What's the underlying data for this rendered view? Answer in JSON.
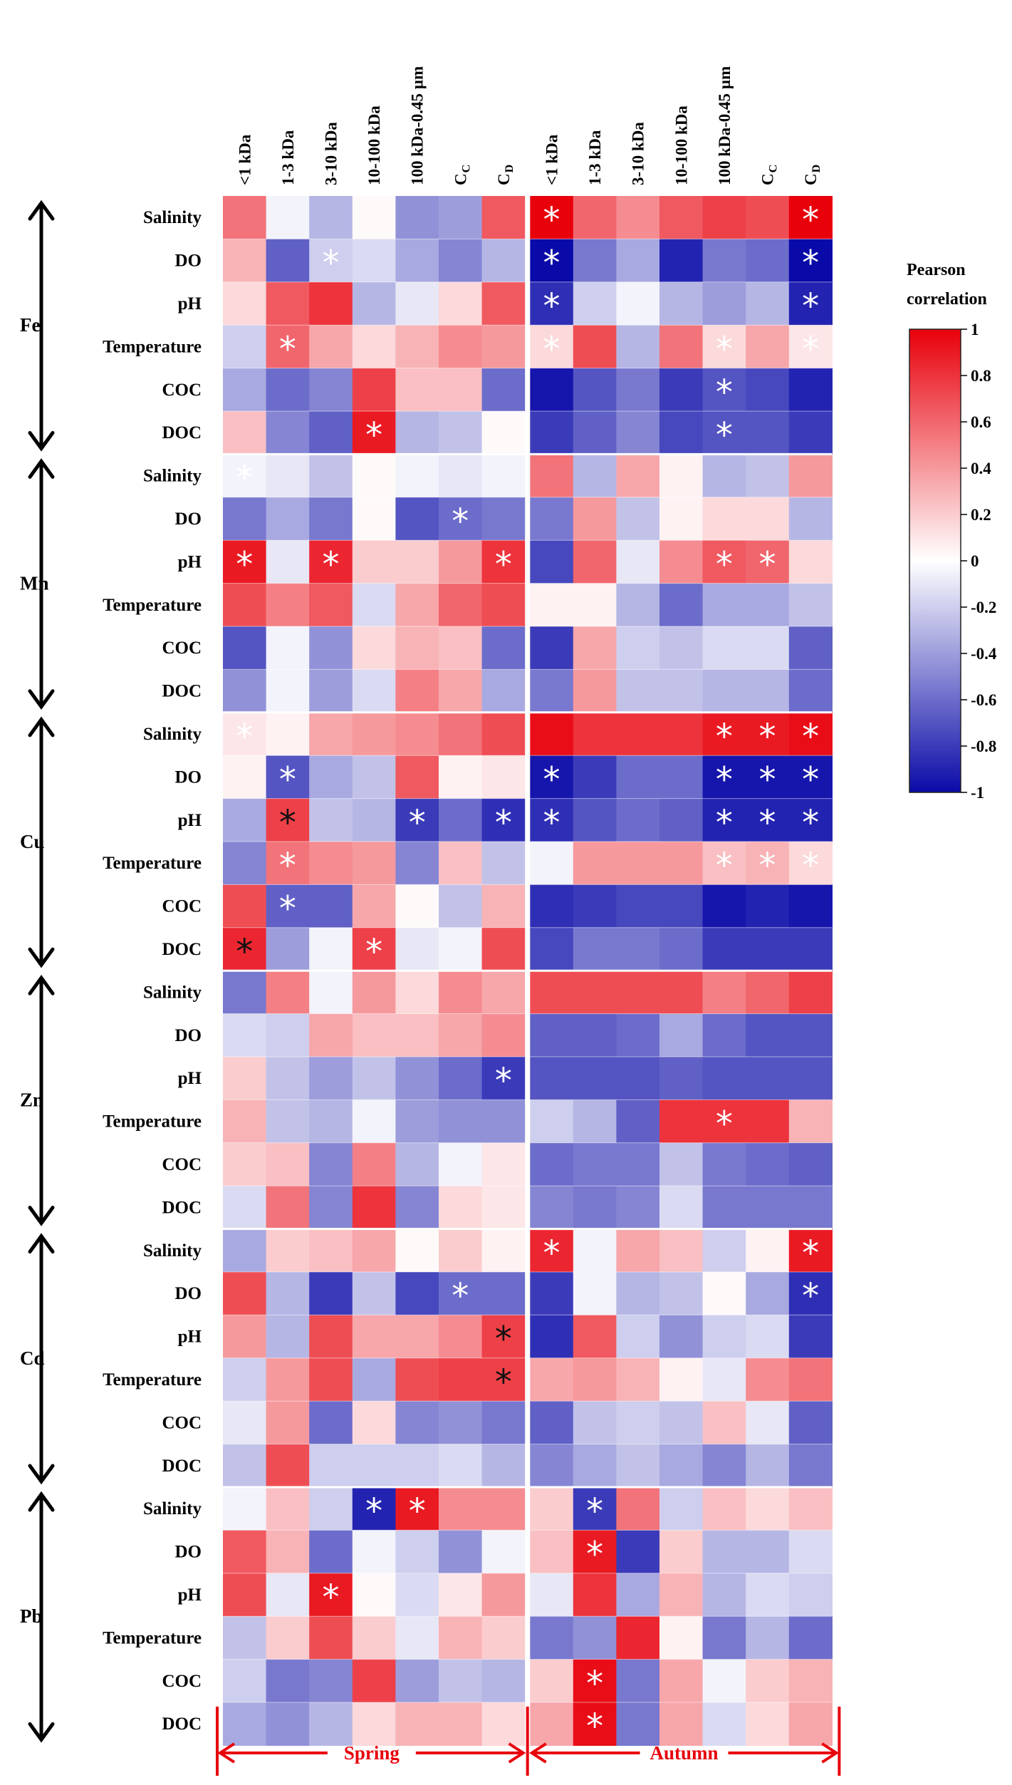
{
  "chart_data": {
    "type": "heatmap",
    "title": "",
    "legend_title": [
      "Pearson",
      "correlation"
    ],
    "legend_ticks": [
      "1",
      "0.8",
      "0.6",
      "0.4",
      "0.2",
      "0",
      "-0.2",
      "-0.4",
      "-0.6",
      "-0.8",
      "-1"
    ],
    "value_range": [
      -1,
      1
    ],
    "colors": {
      "positive": "#e8000b",
      "neutral": "#ffffff",
      "negative": "#0a0aa8",
      "axis": "#000000",
      "season": "#e8000b"
    },
    "columns": [
      {
        "label": "<1 kDa"
      },
      {
        "label": "1-3 kDa"
      },
      {
        "label": "3-10 kDa"
      },
      {
        "label": "10-100 kDa"
      },
      {
        "label": "100 kDa-0.45 µm"
      },
      {
        "label": "C",
        "sub": "C"
      },
      {
        "label": "C",
        "sub": "D"
      },
      {
        "label": "<1 kDa"
      },
      {
        "label": "1-3 kDa"
      },
      {
        "label": "3-10 kDa"
      },
      {
        "label": "10-100 kDa"
      },
      {
        "label": "100 kDa-0.45 µm"
      },
      {
        "label": "C",
        "sub": "C"
      },
      {
        "label": "C",
        "sub": "D"
      }
    ],
    "seasons": [
      "Spring",
      "Autumn"
    ],
    "variables": [
      "Salinity",
      "DO",
      "pH",
      "Temperature",
      "COC",
      "DOC"
    ],
    "groups": [
      {
        "metal": "Fe",
        "values": [
          [
            0.55,
            -0.05,
            -0.3,
            0.02,
            -0.45,
            -0.4,
            0.65,
            1.0,
            0.6,
            0.45,
            0.65,
            0.75,
            0.7,
            1.0
          ],
          [
            0.3,
            -0.65,
            -0.2,
            -0.15,
            -0.35,
            -0.5,
            -0.3,
            -1.0,
            -0.55,
            -0.35,
            -0.9,
            -0.55,
            -0.6,
            -1.0
          ],
          [
            0.15,
            0.65,
            0.8,
            -0.3,
            -0.1,
            0.15,
            0.65,
            -0.85,
            -0.2,
            -0.05,
            -0.3,
            -0.4,
            -0.3,
            -0.9
          ],
          [
            -0.2,
            0.6,
            0.35,
            0.15,
            0.3,
            0.45,
            0.4,
            0.15,
            0.7,
            -0.3,
            0.55,
            0.15,
            0.35,
            0.1
          ],
          [
            -0.35,
            -0.6,
            -0.5,
            0.75,
            0.25,
            0.25,
            -0.6,
            -0.95,
            -0.7,
            -0.55,
            -0.8,
            -0.7,
            -0.75,
            -0.9
          ],
          [
            0.25,
            -0.5,
            -0.65,
            0.9,
            -0.3,
            -0.25,
            0.02,
            -0.8,
            -0.65,
            -0.5,
            -0.75,
            -0.7,
            -0.7,
            -0.8
          ]
        ],
        "stars": [
          [
            7,
            "w"
          ],
          [
            13,
            "w"
          ],
          [
            21,
            "w"
          ],
          [
            27,
            "w"
          ],
          [
            16,
            "w"
          ],
          [
            35,
            "w"
          ],
          [
            41,
            "w"
          ],
          [
            43,
            "w"
          ],
          [
            49,
            "w"
          ],
          [
            53,
            "w"
          ],
          [
            55,
            "w"
          ],
          [
            67,
            "w"
          ],
          [
            73,
            "w"
          ],
          [
            81,
            "w"
          ]
        ]
      },
      {
        "metal": "Mn",
        "values": [
          [
            -0.05,
            -0.1,
            -0.25,
            0.02,
            -0.05,
            -0.1,
            -0.05,
            0.55,
            -0.3,
            0.35,
            0.05,
            -0.3,
            -0.25,
            0.4
          ],
          [
            -0.55,
            -0.35,
            -0.55,
            0.02,
            -0.7,
            -0.6,
            -0.55,
            -0.55,
            0.4,
            -0.25,
            0.05,
            0.15,
            0.15,
            -0.3
          ],
          [
            0.9,
            -0.1,
            0.85,
            0.2,
            0.2,
            0.4,
            0.8,
            -0.75,
            0.6,
            -0.1,
            0.45,
            0.65,
            0.6,
            0.15
          ],
          [
            0.7,
            0.5,
            0.65,
            -0.15,
            0.35,
            0.6,
            0.7,
            0.05,
            0.05,
            -0.3,
            -0.6,
            -0.35,
            -0.35,
            -0.25
          ],
          [
            -0.7,
            -0.05,
            -0.45,
            0.15,
            0.3,
            0.25,
            -0.6,
            -0.8,
            0.35,
            -0.2,
            -0.25,
            -0.15,
            -0.15,
            -0.65
          ],
          [
            -0.45,
            -0.05,
            -0.4,
            -0.15,
            0.5,
            0.35,
            -0.35,
            -0.55,
            0.4,
            -0.25,
            -0.25,
            -0.3,
            -0.3,
            -0.6
          ]
        ],
        "stars": [
          [
            0,
            "w"
          ],
          [
            19,
            "w"
          ],
          [
            28,
            "w"
          ],
          [
            30,
            "w"
          ],
          [
            34,
            "w"
          ],
          [
            39,
            "w"
          ],
          [
            40,
            "w"
          ]
        ]
      },
      {
        "metal": "Cu",
        "values": [
          [
            0.1,
            0.05,
            0.35,
            0.4,
            0.45,
            0.55,
            0.7,
            0.95,
            0.8,
            0.8,
            0.8,
            0.9,
            0.9,
            0.95
          ],
          [
            0.05,
            -0.7,
            -0.35,
            -0.25,
            0.65,
            0.05,
            0.1,
            -0.95,
            -0.8,
            -0.6,
            -0.6,
            -0.95,
            -0.95,
            -0.95
          ],
          [
            -0.35,
            0.75,
            -0.25,
            -0.3,
            -0.8,
            -0.6,
            -0.85,
            -0.85,
            -0.7,
            -0.6,
            -0.65,
            -0.9,
            -0.9,
            -0.9
          ],
          [
            -0.5,
            0.55,
            0.45,
            0.4,
            -0.5,
            0.25,
            -0.25,
            -0.05,
            0.4,
            0.4,
            0.4,
            0.25,
            0.3,
            0.15
          ],
          [
            0.7,
            -0.65,
            -0.65,
            0.35,
            0.02,
            -0.25,
            0.3,
            -0.85,
            -0.8,
            -0.75,
            -0.75,
            -0.95,
            -0.9,
            -0.95
          ],
          [
            0.85,
            -0.4,
            -0.05,
            0.75,
            -0.1,
            -0.05,
            0.7,
            -0.75,
            -0.55,
            -0.55,
            -0.6,
            -0.8,
            -0.8,
            -0.8
          ]
        ],
        "stars": [
          [
            0,
            "w"
          ],
          [
            11,
            "w"
          ],
          [
            12,
            "w"
          ],
          [
            13,
            "w"
          ],
          [
            15,
            "w"
          ],
          [
            21,
            "w"
          ],
          [
            25,
            "w"
          ],
          [
            26,
            "w"
          ],
          [
            27,
            "w"
          ],
          [
            29,
            "b"
          ],
          [
            32,
            "w"
          ],
          [
            34,
            "w"
          ],
          [
            35,
            "w"
          ],
          [
            39,
            "w"
          ],
          [
            40,
            "w"
          ],
          [
            41,
            "w"
          ],
          [
            43,
            "w"
          ],
          [
            53,
            "w"
          ],
          [
            54,
            "w"
          ],
          [
            55,
            "w"
          ],
          [
            57,
            "w"
          ],
          [
            70,
            "b"
          ],
          [
            73,
            "w"
          ]
        ]
      },
      {
        "metal": "Zn",
        "values": [
          [
            -0.55,
            0.5,
            -0.05,
            0.4,
            0.15,
            0.45,
            0.35,
            0.7,
            0.7,
            0.7,
            0.7,
            0.5,
            0.6,
            0.75
          ],
          [
            -0.15,
            -0.2,
            0.35,
            0.25,
            0.25,
            0.35,
            0.45,
            -0.65,
            -0.65,
            -0.6,
            -0.35,
            -0.6,
            -0.7,
            -0.7
          ],
          [
            0.2,
            -0.25,
            -0.4,
            -0.25,
            -0.45,
            -0.6,
            -0.8,
            -0.7,
            -0.7,
            -0.7,
            -0.65,
            -0.7,
            -0.7,
            -0.7
          ],
          [
            0.3,
            -0.25,
            -0.3,
            -0.05,
            -0.4,
            -0.45,
            -0.45,
            -0.2,
            -0.3,
            -0.65,
            0.8,
            0.8,
            0.8,
            0.3
          ],
          [
            0.2,
            0.25,
            -0.5,
            0.5,
            -0.3,
            -0.05,
            0.1,
            -0.6,
            -0.55,
            -0.55,
            -0.25,
            -0.55,
            -0.6,
            -0.65
          ],
          [
            -0.15,
            0.55,
            -0.5,
            0.8,
            -0.5,
            0.15,
            0.1,
            -0.5,
            -0.55,
            -0.5,
            -0.15,
            -0.55,
            -0.55,
            -0.55
          ]
        ],
        "stars": [
          [
            34,
            "w"
          ],
          [
            53,
            "w"
          ]
        ]
      },
      {
        "metal": "Cd",
        "values": [
          [
            -0.35,
            0.2,
            0.25,
            0.35,
            0.02,
            0.2,
            0.05,
            0.85,
            -0.05,
            0.35,
            0.25,
            -0.2,
            0.05,
            0.9
          ],
          [
            0.7,
            -0.3,
            -0.8,
            -0.25,
            -0.75,
            -0.6,
            -0.6,
            -0.8,
            -0.05,
            -0.3,
            -0.25,
            0.02,
            -0.35,
            -0.85
          ],
          [
            0.4,
            -0.3,
            0.7,
            0.35,
            0.35,
            0.45,
            0.75,
            -0.85,
            0.65,
            -0.2,
            -0.45,
            -0.2,
            -0.15,
            -0.8
          ],
          [
            -0.2,
            0.4,
            0.7,
            -0.35,
            0.7,
            0.75,
            0.75,
            0.35,
            0.4,
            0.3,
            0.05,
            -0.1,
            0.45,
            0.55
          ],
          [
            -0.1,
            0.4,
            -0.6,
            0.15,
            -0.5,
            -0.45,
            -0.55,
            -0.65,
            -0.25,
            -0.2,
            -0.25,
            0.25,
            -0.1,
            -0.65
          ],
          [
            -0.25,
            0.7,
            -0.2,
            -0.2,
            -0.2,
            -0.15,
            -0.3,
            -0.5,
            -0.35,
            -0.25,
            -0.35,
            -0.5,
            -0.3,
            -0.55
          ]
        ],
        "stars": [
          [
            7,
            "w"
          ],
          [
            13,
            "w"
          ],
          [
            19,
            "w"
          ],
          [
            27,
            "w"
          ],
          [
            34,
            "b"
          ],
          [
            48,
            "b"
          ]
        ]
      },
      {
        "metal": "Pb",
        "values": [
          [
            -0.05,
            0.25,
            -0.2,
            -0.9,
            0.9,
            0.45,
            0.45,
            0.2,
            -0.8,
            0.55,
            -0.2,
            0.25,
            0.15,
            0.25
          ],
          [
            0.65,
            0.3,
            -0.6,
            -0.05,
            -0.2,
            -0.45,
            -0.05,
            0.25,
            0.9,
            -0.8,
            0.2,
            -0.3,
            -0.3,
            -0.15
          ],
          [
            0.7,
            -0.1,
            0.9,
            0.02,
            -0.15,
            0.1,
            0.4,
            -0.1,
            0.8,
            -0.35,
            0.3,
            -0.3,
            -0.15,
            -0.2
          ],
          [
            -0.25,
            0.2,
            0.7,
            0.2,
            -0.1,
            0.3,
            0.2,
            -0.55,
            -0.45,
            0.85,
            0.05,
            -0.55,
            -0.3,
            -0.6
          ],
          [
            -0.2,
            -0.55,
            -0.5,
            0.75,
            -0.4,
            -0.25,
            -0.3,
            0.2,
            0.95,
            -0.55,
            0.35,
            -0.05,
            0.2,
            0.3
          ],
          [
            -0.35,
            -0.45,
            -0.3,
            0.15,
            0.3,
            0.3,
            0.15,
            0.35,
            0.95,
            -0.55,
            0.35,
            -0.15,
            0.15,
            0.35
          ]
        ],
        "stars": [
          [
            3,
            "w"
          ],
          [
            4,
            "w"
          ],
          [
            8,
            "w"
          ],
          [
            22,
            "w"
          ],
          [
            30,
            "w"
          ],
          [
            64,
            "w"
          ],
          [
            78,
            "w"
          ]
        ]
      }
    ]
  }
}
